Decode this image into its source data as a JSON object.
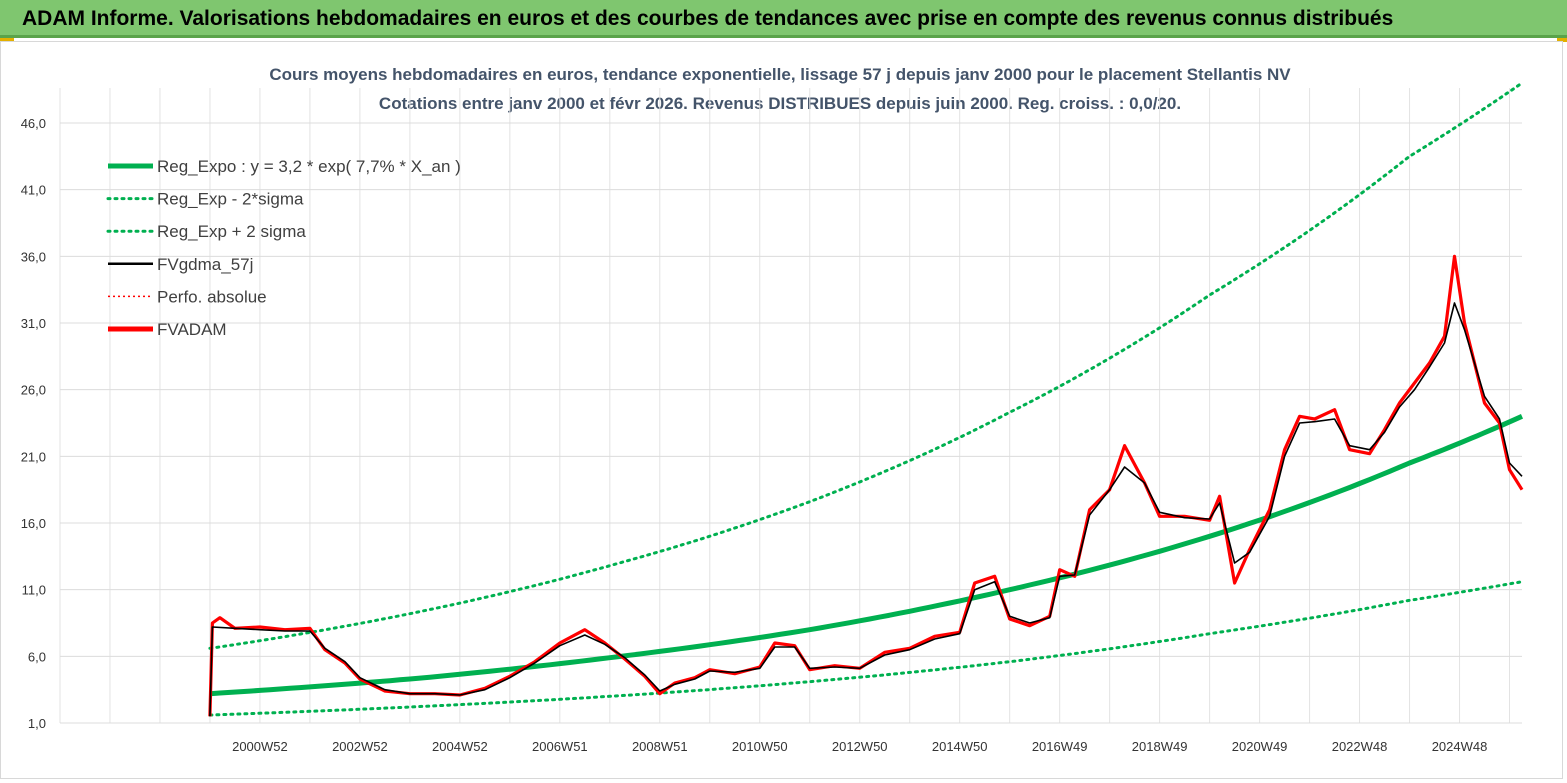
{
  "banner": {
    "title": "ADAM Informe. Valorisations hebdomadaires en euros et des courbes de tendances avec prise en compte des revenus connus distribués"
  },
  "colors": {
    "banner": "#7fc66f",
    "reg_expo": "#00b050",
    "fv_gdma": "#000000",
    "fv_adam": "#ff0000",
    "perfo": "#ff0000"
  },
  "chart_data": {
    "type": "line",
    "title": "Cours moyens hebdomadaires en euros, tendance exponentielle, lissage 57 j depuis janv 2000 pour le placement Stellantis NV",
    "subtitle": "Cotations entre janv 2000 et févr 2026. Revenus DISTRIBUES depuis juin 2000. Reg. croiss. : 0,0/20.",
    "xlabel": "",
    "ylabel": "",
    "ylim": [
      1.0,
      46.0
    ],
    "yticks": [
      "1,0",
      "6,0",
      "11,0",
      "16,0",
      "21,0",
      "26,0",
      "31,0",
      "36,0",
      "41,0",
      "46,0"
    ],
    "xticks": [
      "2000W52",
      "2002W52",
      "2004W52",
      "2006W51",
      "2008W51",
      "2010W50",
      "2012W50",
      "2014W50",
      "2016W49",
      "2018W49",
      "2020W49",
      "2022W48",
      "2024W48"
    ],
    "xlim": [
      1997.0,
      2026.25
    ],
    "grid": true,
    "legend_position": "top-left",
    "legend": [
      {
        "name": "Reg_Expo : y = 3,2 * exp( 7,7% *  X_an )",
        "style": "solid-thick",
        "color": "#00b050"
      },
      {
        "name": "Reg_Exp - 2*sigma",
        "style": "dotted",
        "color": "#00b050"
      },
      {
        "name": "Reg_Exp + 2 sigma",
        "style": "dotted",
        "color": "#00b050"
      },
      {
        "name": "FVgdma_57j",
        "style": "solid",
        "color": "#000000"
      },
      {
        "name": "Perfo. absolue",
        "style": "dotted-thin",
        "color": "#ff0000"
      },
      {
        "name": "FVADAM",
        "style": "solid-thick",
        "color": "#ff0000"
      }
    ],
    "series": [
      {
        "name": "Reg_Expo : y = 3,2 * exp( 7,7% *  X_an )",
        "x": [
          2000.0,
          2004.0,
          2008.0,
          2012.0,
          2016.0,
          2020.0,
          2024.0,
          2026.25
        ],
        "y": [
          3.2,
          4.3,
          5.9,
          8.0,
          11.0,
          15.0,
          20.5,
          24.0
        ]
      },
      {
        "name": "Reg_Exp - 2*sigma",
        "x": [
          2000.0,
          2004.0,
          2008.0,
          2012.0,
          2016.0,
          2020.0,
          2024.0,
          2026.25
        ],
        "y": [
          1.6,
          2.2,
          3.0,
          4.1,
          5.6,
          7.7,
          10.2,
          11.6
        ]
      },
      {
        "name": "Reg_Exp + 2 sigma",
        "x": [
          2000.0,
          2004.0,
          2008.0,
          2012.0,
          2016.0,
          2020.0,
          2024.0,
          2026.25
        ],
        "y": [
          6.6,
          9.2,
          12.8,
          17.6,
          24.3,
          33.1,
          43.5,
          49.0
        ]
      },
      {
        "name": "FVADAM",
        "x": [
          2000.0,
          2000.05,
          2000.2,
          2000.5,
          2001.0,
          2001.5,
          2002.0,
          2002.3,
          2002.7,
          2003.0,
          2003.5,
          2004.0,
          2004.5,
          2005.0,
          2005.5,
          2006.0,
          2006.5,
          2007.0,
          2007.5,
          2007.9,
          2008.3,
          2008.7,
          2009.0,
          2009.3,
          2009.7,
          2010.0,
          2010.5,
          2011.0,
          2011.3,
          2011.7,
          2012.0,
          2012.5,
          2013.0,
          2013.5,
          2014.0,
          2014.5,
          2015.0,
          2015.3,
          2015.7,
          2016.0,
          2016.4,
          2016.8,
          2017.0,
          2017.3,
          2017.6,
          2018.0,
          2018.3,
          2018.7,
          2019.0,
          2019.5,
          2020.0,
          2020.2,
          2020.5,
          2020.8,
          2021.2,
          2021.5,
          2021.8,
          2022.1,
          2022.5,
          2022.8,
          2023.2,
          2023.5,
          2023.8,
          2024.1,
          2024.4,
          2024.7,
          2024.9,
          2025.1,
          2025.5,
          2025.8,
          2026.0,
          2026.25
        ],
        "y": [
          1.5,
          8.5,
          8.9,
          8.1,
          8.2,
          8.0,
          8.1,
          6.5,
          5.5,
          4.3,
          3.4,
          3.2,
          3.2,
          3.1,
          3.6,
          4.5,
          5.6,
          7.0,
          8.0,
          7.0,
          5.8,
          4.5,
          3.2,
          4.0,
          4.4,
          5.0,
          4.7,
          5.2,
          7.0,
          6.8,
          5.0,
          5.3,
          5.1,
          6.3,
          6.6,
          7.5,
          7.8,
          11.5,
          12.0,
          8.8,
          8.3,
          9.0,
          12.5,
          12.0,
          17.0,
          18.5,
          21.8,
          19.0,
          16.5,
          16.5,
          16.2,
          18.0,
          11.5,
          14.0,
          17.0,
          21.5,
          24.0,
          23.8,
          24.5,
          21.5,
          21.2,
          23.0,
          25.0,
          26.5,
          28.0,
          30.0,
          36.0,
          31.0,
          25.0,
          23.5,
          20.0,
          18.5
        ]
      },
      {
        "name": "FVgdma_57j",
        "x": [
          2000.0,
          2000.05,
          2000.5,
          2001.0,
          2001.5,
          2002.0,
          2002.3,
          2002.7,
          2003.0,
          2003.5,
          2004.0,
          2004.5,
          2005.0,
          2005.5,
          2006.0,
          2006.5,
          2007.0,
          2007.5,
          2007.9,
          2008.3,
          2008.7,
          2009.0,
          2009.3,
          2009.7,
          2010.0,
          2010.5,
          2011.0,
          2011.3,
          2011.7,
          2012.0,
          2012.5,
          2013.0,
          2013.5,
          2014.0,
          2014.5,
          2015.0,
          2015.3,
          2015.7,
          2016.0,
          2016.4,
          2016.8,
          2017.0,
          2017.3,
          2017.6,
          2018.0,
          2018.3,
          2018.7,
          2019.0,
          2019.5,
          2020.0,
          2020.2,
          2020.5,
          2020.8,
          2021.2,
          2021.5,
          2021.8,
          2022.1,
          2022.5,
          2022.8,
          2023.2,
          2023.5,
          2023.8,
          2024.1,
          2024.4,
          2024.7,
          2024.9,
          2025.1,
          2025.5,
          2025.8,
          2026.0,
          2026.25
        ],
        "y": [
          1.5,
          8.2,
          8.1,
          8.0,
          7.9,
          7.9,
          6.6,
          5.6,
          4.4,
          3.5,
          3.2,
          3.2,
          3.1,
          3.5,
          4.4,
          5.5,
          6.8,
          7.6,
          6.9,
          5.9,
          4.6,
          3.4,
          3.9,
          4.3,
          4.9,
          4.8,
          5.1,
          6.7,
          6.7,
          5.1,
          5.2,
          5.1,
          6.1,
          6.5,
          7.3,
          7.7,
          11.0,
          11.6,
          9.0,
          8.5,
          8.9,
          12.0,
          12.1,
          16.6,
          18.5,
          20.2,
          19.0,
          16.8,
          16.4,
          16.3,
          17.5,
          13.0,
          13.8,
          16.5,
          21.0,
          23.5,
          23.6,
          23.8,
          21.8,
          21.5,
          22.8,
          24.7,
          26.0,
          27.7,
          29.5,
          32.5,
          30.5,
          25.5,
          23.8,
          20.5,
          19.5
        ]
      }
    ]
  }
}
